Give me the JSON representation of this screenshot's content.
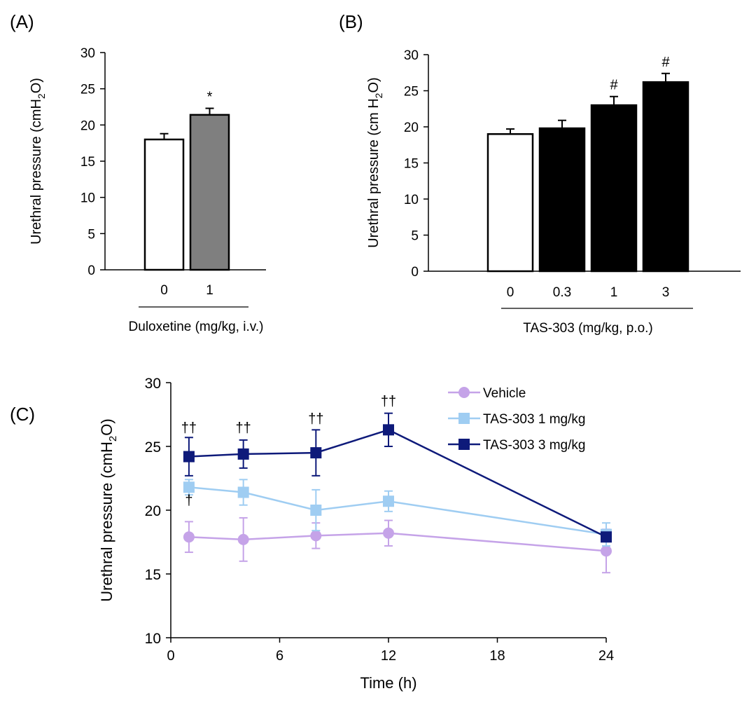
{
  "chart_data": [
    {
      "panel": "(A)",
      "type": "bar",
      "ylabel_parts": [
        "Urethral pressure (cmH",
        "2",
        "O)"
      ],
      "ylim": [
        0,
        30
      ],
      "yticks": [
        0,
        5,
        10,
        15,
        20,
        25,
        30
      ],
      "categories": [
        "0",
        "1"
      ],
      "values": [
        18.0,
        21.4
      ],
      "errors": [
        0.8,
        0.9
      ],
      "bar_colors": [
        "#ffffff",
        "#7f7f7f"
      ],
      "significance": [
        "",
        "*"
      ],
      "xlabel": "Duloxetine (mg/kg, i.v.)"
    },
    {
      "panel": "(B)",
      "type": "bar",
      "ylabel_parts": [
        "Urethral pressure (cm H",
        "2",
        "O)"
      ],
      "ylim": [
        0,
        30
      ],
      "yticks": [
        0,
        5,
        10,
        15,
        20,
        25,
        30
      ],
      "categories": [
        "0",
        "0.3",
        "1",
        "3"
      ],
      "values": [
        19.0,
        19.8,
        23.0,
        26.2
      ],
      "errors": [
        0.7,
        1.1,
        1.2,
        1.2
      ],
      "bar_colors": [
        "#ffffff",
        "#000000",
        "#000000",
        "#000000"
      ],
      "significance": [
        "",
        "",
        "#",
        "#"
      ],
      "xlabel": "TAS-303 (mg/kg, p.o.)"
    },
    {
      "panel": "(C)",
      "type": "line",
      "ylabel_parts": [
        "Urethral pressure (cmH",
        "2",
        "O)"
      ],
      "xlabel": "Time (h)",
      "ylim": [
        10,
        30
      ],
      "yticks": [
        10,
        15,
        20,
        25,
        30
      ],
      "xlim": [
        0,
        24
      ],
      "xticks": [
        0,
        6,
        12,
        18,
        24
      ],
      "x": [
        1,
        4,
        8,
        12,
        24
      ],
      "series": [
        {
          "name": "Vehicle",
          "color": "#c5a3e8",
          "marker": "circle",
          "values": [
            17.9,
            17.7,
            18.0,
            18.2,
            16.8
          ],
          "errors": [
            1.2,
            1.7,
            1.0,
            1.0,
            1.7
          ]
        },
        {
          "name": "TAS-303 1 mg/kg",
          "color": "#9fcdf2",
          "marker": "square",
          "values": [
            21.8,
            21.4,
            20.0,
            20.7,
            18.1
          ],
          "errors": [
            0.6,
            1.0,
            1.6,
            0.8,
            0.9
          ]
        },
        {
          "name": "TAS-303 3 mg/kg",
          "color": "#0e1a7a",
          "marker": "square",
          "values": [
            24.2,
            24.4,
            24.5,
            26.3,
            17.9
          ],
          "errors": [
            1.5,
            1.1,
            1.8,
            1.3,
            0.2
          ]
        }
      ],
      "annotations": [
        {
          "x": 1,
          "y": 26.1,
          "text": "††"
        },
        {
          "x": 4,
          "y": 26.1,
          "text": "††"
        },
        {
          "x": 8,
          "y": 26.8,
          "text": "††"
        },
        {
          "x": 12,
          "y": 28.2,
          "text": "††"
        },
        {
          "x": 1,
          "y": 20.4,
          "text": "†"
        }
      ]
    }
  ]
}
